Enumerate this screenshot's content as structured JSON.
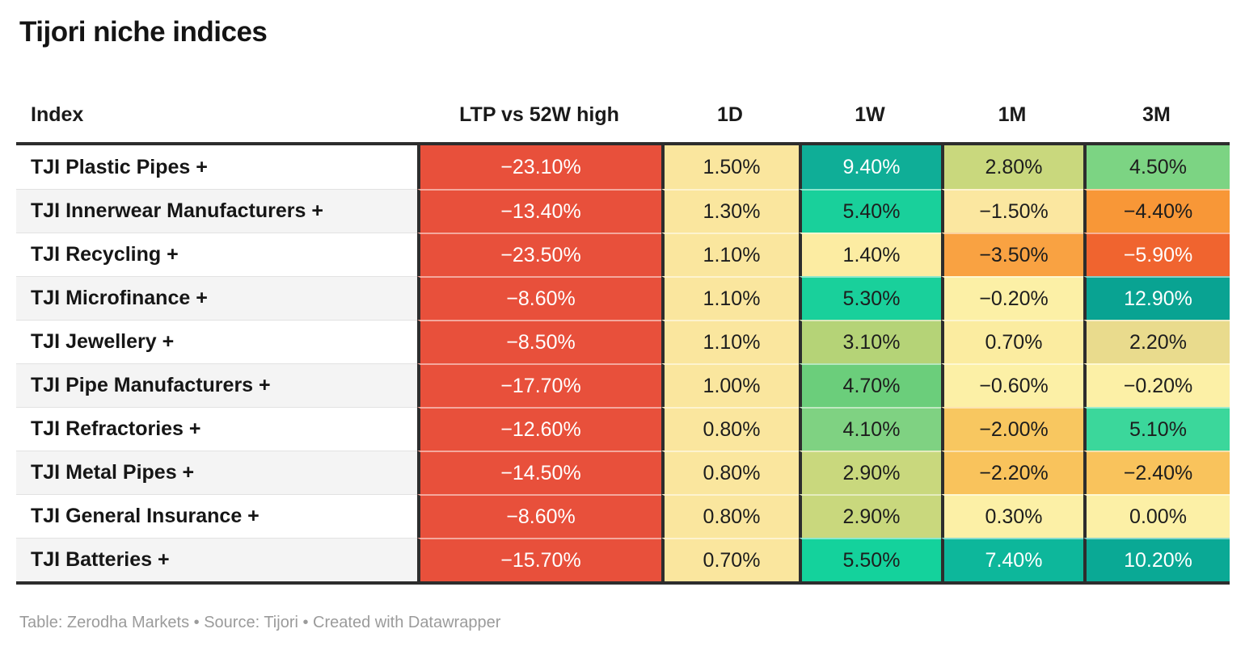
{
  "title": "Tijori niche indices",
  "footer_note": "Table: Zerodha Markets • Source: Tijori • Created with Datawrapper",
  "columns": [
    "Index",
    "LTP vs 52W high",
    "1D",
    "1W",
    "1M",
    "3M"
  ],
  "colors": {
    "ltp_red": "#e8503b",
    "separator_dark": "#2d2d2d",
    "row_stripe": "#f4f4f4",
    "text_dark": "#1d1d1d",
    "text_light": "#ffffff",
    "footer_gray": "#9b9b9b"
  },
  "rows": [
    {
      "index": "TJI Plastic Pipes +",
      "cells": [
        {
          "v": "−23.10%",
          "bg": "#e8503b",
          "fg": "#ffffff"
        },
        {
          "v": "1.50%",
          "bg": "#fae69e",
          "fg": "#1d1d1d"
        },
        {
          "v": "9.40%",
          "bg": "#0fae97",
          "fg": "#ffffff"
        },
        {
          "v": "2.80%",
          "bg": "#c9d87d",
          "fg": "#1d1d1d"
        },
        {
          "v": "4.50%",
          "bg": "#7cd483",
          "fg": "#1d1d1d"
        }
      ]
    },
    {
      "index": "TJI Innerwear Manufacturers +",
      "cells": [
        {
          "v": "−13.40%",
          "bg": "#e8503b",
          "fg": "#ffffff"
        },
        {
          "v": "1.30%",
          "bg": "#fae69e",
          "fg": "#1d1d1d"
        },
        {
          "v": "5.40%",
          "bg": "#19d09b",
          "fg": "#1d1d1d"
        },
        {
          "v": "−1.50%",
          "bg": "#fbe7a0",
          "fg": "#1d1d1d"
        },
        {
          "v": "−4.40%",
          "bg": "#f89737",
          "fg": "#1d1d1d"
        }
      ]
    },
    {
      "index": "TJI Recycling +",
      "cells": [
        {
          "v": "−23.50%",
          "bg": "#e8503b",
          "fg": "#ffffff"
        },
        {
          "v": "1.10%",
          "bg": "#fae69e",
          "fg": "#1d1d1d"
        },
        {
          "v": "1.40%",
          "bg": "#fceca2",
          "fg": "#1d1d1d"
        },
        {
          "v": "−3.50%",
          "bg": "#f9a242",
          "fg": "#1d1d1d"
        },
        {
          "v": "−5.90%",
          "bg": "#f0642f",
          "fg": "#ffffff"
        }
      ]
    },
    {
      "index": "TJI Microfinance +",
      "cells": [
        {
          "v": "−8.60%",
          "bg": "#e8503b",
          "fg": "#ffffff"
        },
        {
          "v": "1.10%",
          "bg": "#fae69e",
          "fg": "#1d1d1d"
        },
        {
          "v": "5.30%",
          "bg": "#19d09b",
          "fg": "#1d1d1d"
        },
        {
          "v": "−0.20%",
          "bg": "#fcf0a6",
          "fg": "#1d1d1d"
        },
        {
          "v": "12.90%",
          "bg": "#09a392",
          "fg": "#ffffff"
        }
      ]
    },
    {
      "index": "TJI Jewellery +",
      "cells": [
        {
          "v": "−8.50%",
          "bg": "#e8503b",
          "fg": "#ffffff"
        },
        {
          "v": "1.10%",
          "bg": "#fae69e",
          "fg": "#1d1d1d"
        },
        {
          "v": "3.10%",
          "bg": "#b5d377",
          "fg": "#1d1d1d"
        },
        {
          "v": "0.70%",
          "bg": "#fbeca0",
          "fg": "#1d1d1d"
        },
        {
          "v": "2.20%",
          "bg": "#e9db8d",
          "fg": "#1d1d1d"
        }
      ]
    },
    {
      "index": "TJI Pipe Manufacturers +",
      "cells": [
        {
          "v": "−17.70%",
          "bg": "#e8503b",
          "fg": "#ffffff"
        },
        {
          "v": "1.00%",
          "bg": "#fae69e",
          "fg": "#1d1d1d"
        },
        {
          "v": "4.70%",
          "bg": "#6bce7b",
          "fg": "#1d1d1d"
        },
        {
          "v": "−0.60%",
          "bg": "#fcf0a6",
          "fg": "#1d1d1d"
        },
        {
          "v": "−0.20%",
          "bg": "#fcf0a6",
          "fg": "#1d1d1d"
        }
      ]
    },
    {
      "index": "TJI Refractories +",
      "cells": [
        {
          "v": "−12.60%",
          "bg": "#e8503b",
          "fg": "#ffffff"
        },
        {
          "v": "0.80%",
          "bg": "#fae69e",
          "fg": "#1d1d1d"
        },
        {
          "v": "4.10%",
          "bg": "#7fd282",
          "fg": "#1d1d1d"
        },
        {
          "v": "−2.00%",
          "bg": "#f8c760",
          "fg": "#1d1d1d"
        },
        {
          "v": "5.10%",
          "bg": "#3bd79b",
          "fg": "#1d1d1d"
        }
      ]
    },
    {
      "index": "TJI Metal Pipes +",
      "cells": [
        {
          "v": "−14.50%",
          "bg": "#e8503b",
          "fg": "#ffffff"
        },
        {
          "v": "0.80%",
          "bg": "#fae69e",
          "fg": "#1d1d1d"
        },
        {
          "v": "2.90%",
          "bg": "#c9d87d",
          "fg": "#1d1d1d"
        },
        {
          "v": "−2.20%",
          "bg": "#f9c35c",
          "fg": "#1d1d1d"
        },
        {
          "v": "−2.40%",
          "bg": "#f9c35c",
          "fg": "#1d1d1d"
        }
      ]
    },
    {
      "index": "TJI General Insurance +",
      "cells": [
        {
          "v": "−8.60%",
          "bg": "#e8503b",
          "fg": "#ffffff"
        },
        {
          "v": "0.80%",
          "bg": "#fae69e",
          "fg": "#1d1d1d"
        },
        {
          "v": "2.90%",
          "bg": "#c9d87d",
          "fg": "#1d1d1d"
        },
        {
          "v": "0.30%",
          "bg": "#fcf0a6",
          "fg": "#1d1d1d"
        },
        {
          "v": "0.00%",
          "bg": "#fcf0a6",
          "fg": "#1d1d1d"
        }
      ]
    },
    {
      "index": "TJI Batteries +",
      "cells": [
        {
          "v": "−15.70%",
          "bg": "#e8503b",
          "fg": "#ffffff"
        },
        {
          "v": "0.70%",
          "bg": "#fae69e",
          "fg": "#1d1d1d"
        },
        {
          "v": "5.50%",
          "bg": "#14d29c",
          "fg": "#1d1d1d"
        },
        {
          "v": "7.40%",
          "bg": "#0db79b",
          "fg": "#ffffff"
        },
        {
          "v": "10.20%",
          "bg": "#0aa995",
          "fg": "#ffffff"
        }
      ]
    }
  ],
  "chart_data": {
    "type": "table",
    "title": "Tijori niche indices",
    "columns": [
      "Index",
      "LTP vs 52W high",
      "1D",
      "1W",
      "1M",
      "3M"
    ],
    "rows": [
      [
        "TJI Plastic Pipes +",
        -23.1,
        1.5,
        9.4,
        2.8,
        4.5
      ],
      [
        "TJI Innerwear Manufacturers +",
        -13.4,
        1.3,
        5.4,
        -1.5,
        -4.4
      ],
      [
        "TJI Recycling +",
        -23.5,
        1.1,
        1.4,
        -3.5,
        -5.9
      ],
      [
        "TJI Microfinance +",
        -8.6,
        1.1,
        5.3,
        -0.2,
        12.9
      ],
      [
        "TJI Jewellery +",
        -8.5,
        1.1,
        3.1,
        0.7,
        2.2
      ],
      [
        "TJI Pipe Manufacturers +",
        -17.7,
        1.0,
        4.7,
        -0.6,
        -0.2
      ],
      [
        "TJI Refractories +",
        -12.6,
        0.8,
        4.1,
        -2.0,
        5.1
      ],
      [
        "TJI Metal Pipes +",
        -14.5,
        0.8,
        2.9,
        -2.2,
        -2.4
      ],
      [
        "TJI General Insurance +",
        -8.6,
        0.8,
        2.9,
        0.3,
        0.0
      ],
      [
        "TJI Batteries +",
        -15.7,
        0.7,
        5.5,
        7.4,
        10.2
      ]
    ],
    "value_unit": "%",
    "color_scale": "red-yellow-green heatmap (negative=red/orange, near-zero=yellow, positive=green/teal)",
    "source_note": "Table: Zerodha Markets • Source: Tijori • Created with Datawrapper"
  }
}
